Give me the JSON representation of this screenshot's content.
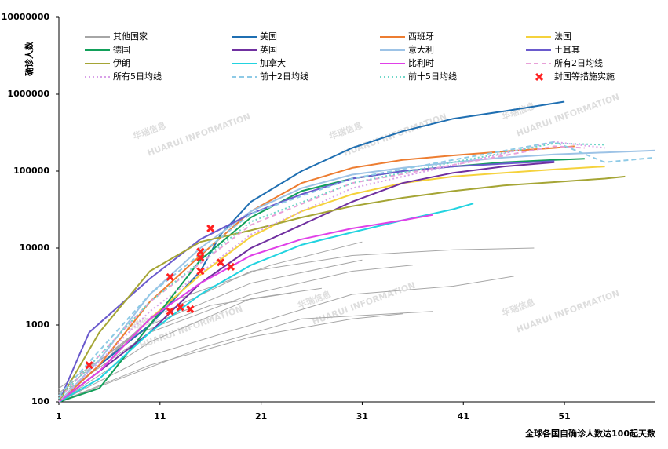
{
  "chart_data": {
    "type": "line",
    "y_label": "确诊人数",
    "x_label": "全球各国自确诊人数达100起天数",
    "log_y": true,
    "xlim": [
      1,
      60
    ],
    "xticks": [
      1,
      11,
      21,
      31,
      41,
      51
    ],
    "ylim": [
      100,
      10000000
    ],
    "yticks": [
      100,
      1000,
      10000,
      100000,
      1000000,
      10000000
    ],
    "watermark": {
      "text": "华瑞信息",
      "subtext": "HUARUI INFORMATION"
    },
    "series": [
      {
        "name": "其他国家",
        "color": "#a6a6a6",
        "dash": "solid",
        "x": [
          1,
          10,
          20,
          30,
          40,
          48
        ],
        "values": [
          100,
          1200,
          5000,
          8000,
          9500,
          10000
        ]
      },
      {
        "name": "美国",
        "color": "#1f6fb2",
        "dash": "solid",
        "x": [
          1,
          5,
          10,
          15,
          17,
          20,
          25,
          30,
          35,
          40,
          45,
          51
        ],
        "values": [
          100,
          300,
          1000,
          5000,
          15000,
          40000,
          100000,
          200000,
          330000,
          480000,
          600000,
          800000
        ]
      },
      {
        "name": "西班牙",
        "color": "#ed7d31",
        "dash": "solid",
        "x": [
          1,
          5,
          10,
          15,
          20,
          25,
          30,
          35,
          40,
          45,
          50,
          52
        ],
        "values": [
          100,
          300,
          2000,
          8000,
          30000,
          70000,
          110000,
          140000,
          160000,
          180000,
          200000,
          210000
        ]
      },
      {
        "name": "法国",
        "color": "#f5d23c",
        "dash": "solid",
        "x": [
          1,
          5,
          10,
          15,
          20,
          25,
          30,
          35,
          40,
          45,
          50,
          55
        ],
        "values": [
          100,
          250,
          1200,
          4500,
          14000,
          30000,
          50000,
          70000,
          85000,
          95000,
          105000,
          115000
        ]
      },
      {
        "name": "德国",
        "color": "#12a05a",
        "dash": "solid",
        "x": [
          1,
          5,
          10,
          15,
          20,
          25,
          30,
          35,
          40,
          45,
          50,
          53
        ],
        "values": [
          100,
          150,
          1000,
          7000,
          25000,
          55000,
          80000,
          100000,
          115000,
          130000,
          140000,
          145000
        ]
      },
      {
        "name": "英国",
        "color": "#7030a0",
        "dash": "solid",
        "x": [
          1,
          5,
          10,
          15,
          20,
          25,
          30,
          35,
          40,
          45,
          50
        ],
        "values": [
          100,
          250,
          800,
          3500,
          10000,
          20000,
          40000,
          70000,
          95000,
          115000,
          130000
        ]
      },
      {
        "name": "意大利",
        "color": "#9dc3e6",
        "dash": "solid",
        "x": [
          1,
          5,
          10,
          15,
          20,
          25,
          30,
          35,
          40,
          45,
          50,
          55,
          60
        ],
        "values": [
          100,
          350,
          2500,
          10000,
          30000,
          60000,
          90000,
          110000,
          130000,
          150000,
          165000,
          175000,
          185000
        ]
      },
      {
        "name": "土耳其",
        "color": "#6a5acd",
        "dash": "solid",
        "x": [
          1,
          4,
          10,
          15,
          20,
          25,
          30,
          35,
          40,
          45,
          50
        ],
        "values": [
          100,
          800,
          4000,
          13000,
          28000,
          50000,
          80000,
          100000,
          115000,
          125000,
          135000
        ]
      },
      {
        "name": "伊朗",
        "color": "#a5a535",
        "dash": "solid",
        "x": [
          1,
          5,
          10,
          15,
          20,
          25,
          30,
          35,
          40,
          45,
          50,
          55,
          57
        ],
        "values": [
          100,
          800,
          5000,
          12000,
          17000,
          25000,
          35000,
          45000,
          55000,
          65000,
          72000,
          80000,
          85000
        ]
      },
      {
        "name": "加拿大",
        "color": "#22d3e0",
        "dash": "solid",
        "x": [
          1,
          5,
          10,
          15,
          20,
          25,
          30,
          35,
          40,
          42
        ],
        "values": [
          100,
          200,
          800,
          2500,
          6000,
          11000,
          16000,
          23000,
          32000,
          38000
        ]
      },
      {
        "name": "比利时",
        "color": "#e040e8",
        "dash": "solid",
        "x": [
          1,
          5,
          10,
          15,
          20,
          25,
          30,
          35,
          38
        ],
        "values": [
          100,
          250,
          1200,
          3500,
          8000,
          13000,
          18000,
          23000,
          27000
        ]
      },
      {
        "name": "所有2日均线",
        "color": "#e8a0d8",
        "dash": "dashed",
        "x": [
          1,
          10,
          20,
          30,
          40,
          50,
          53
        ],
        "values": [
          110,
          2000,
          20000,
          70000,
          120000,
          210000,
          200000
        ]
      },
      {
        "name": "所有5日均线",
        "color": "#d8a0e8",
        "dash": "dotted",
        "x": [
          1,
          10,
          20,
          30,
          40,
          50,
          55
        ],
        "values": [
          100,
          1500,
          15000,
          60000,
          120000,
          240000,
          200000
        ]
      },
      {
        "name": "前十2日均线",
        "color": "#8ecae6",
        "dash": "dashed",
        "x": [
          1,
          10,
          20,
          30,
          40,
          50,
          55,
          60
        ],
        "values": [
          120,
          2500,
          28000,
          80000,
          140000,
          240000,
          130000,
          150000
        ]
      },
      {
        "name": "前十5日均线",
        "color": "#6fd6c8",
        "dash": "dotted",
        "x": [
          1,
          10,
          20,
          30,
          40,
          50,
          55
        ],
        "values": [
          110,
          2000,
          22000,
          70000,
          130000,
          230000,
          220000
        ]
      },
      {
        "name": "封国等措施实施",
        "color": "#ff2020",
        "dash": "marker",
        "x": [
          4,
          12,
          12,
          13,
          14,
          15,
          15,
          15,
          16,
          17,
          18
        ],
        "values": [
          300,
          4200,
          1500,
          1700,
          1600,
          9000,
          7500,
          5000,
          18000,
          6500,
          5700
        ]
      }
    ],
    "other_countries": [
      {
        "x": [
          1,
          10,
          20,
          30,
          36
        ],
        "values": [
          120,
          800,
          2500,
          5000,
          6000
        ]
      },
      {
        "x": [
          1,
          10,
          20,
          30,
          40,
          46
        ],
        "values": [
          100,
          400,
          1000,
          2500,
          3200,
          4300
        ]
      },
      {
        "x": [
          1,
          10,
          20,
          27
        ],
        "values": [
          100,
          600,
          2200,
          3000
        ]
      },
      {
        "x": [
          1,
          10,
          20,
          30,
          35
        ],
        "values": [
          100,
          300,
          700,
          1200,
          1400
        ]
      },
      {
        "x": [
          1,
          10,
          20,
          31
        ],
        "values": [
          150,
          1000,
          3500,
          7000
        ]
      },
      {
        "x": [
          1,
          15,
          25,
          38
        ],
        "values": [
          100,
          500,
          1200,
          1500
        ]
      },
      {
        "x": [
          1,
          12,
          22,
          31
        ],
        "values": [
          100,
          2000,
          6000,
          12000
        ]
      },
      {
        "x": [
          1,
          8,
          16,
          24
        ],
        "values": [
          130,
          700,
          1800,
          2600
        ]
      }
    ]
  }
}
